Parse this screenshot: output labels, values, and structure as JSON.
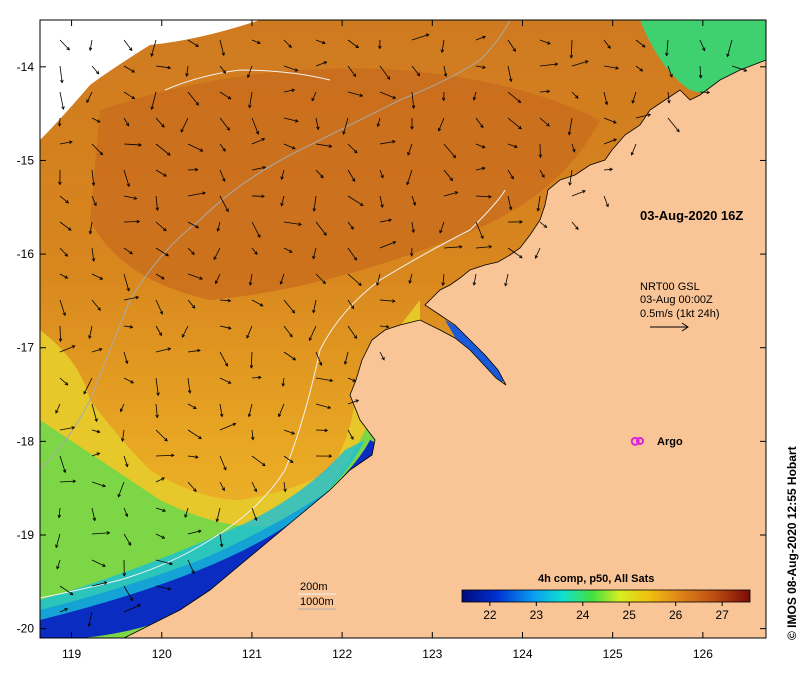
{
  "map": {
    "lon_ticks": [
      "119",
      "120",
      "121",
      "122",
      "123",
      "124",
      "125",
      "126"
    ],
    "lat_ticks": [
      "-14",
      "-15",
      "-16",
      "-17",
      "-18",
      "-19",
      "-20"
    ],
    "lon_range": [
      118.65,
      126.7
    ],
    "lat_range": [
      -20.1,
      -13.5
    ],
    "timestamp": "03-Aug-2020 16Z",
    "current": {
      "line1": "NRT00 GSL",
      "line2": "03-Aug 00:00Z",
      "line3": "0.5m/s (1kt 24h)"
    },
    "argo_label": "Argo",
    "argo_position": {
      "lon": 125.25,
      "lat": -18.0
    },
    "isobath_labels": [
      "200m",
      "1000m"
    ],
    "colorbar": {
      "title": "4h comp, p50, All Sats",
      "ticks": [
        "22",
        "23",
        "24",
        "25",
        "26",
        "27"
      ],
      "range": [
        21.4,
        27.6
      ]
    },
    "credit": "© IMOS 08-Aug-2020 12:55 Hobart",
    "colors": {
      "land": "#f9c597",
      "warm": "#d9781e",
      "cool": "#1a2aa0",
      "argo": "#e020e0"
    }
  }
}
